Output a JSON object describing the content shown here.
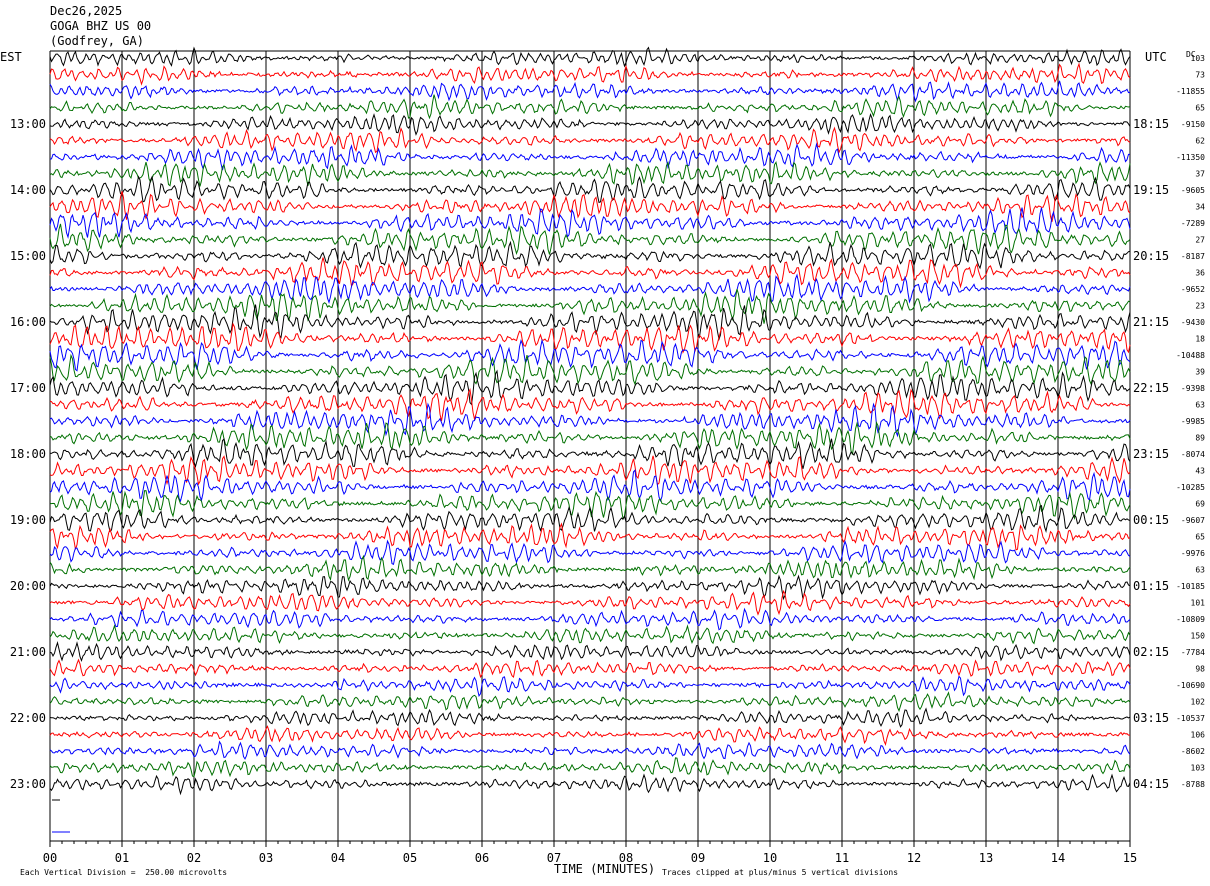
{
  "header": {
    "date": "Dec26,2025",
    "station": "GOGA BHZ US 00",
    "location": "(Godfrey, GA)"
  },
  "labels": {
    "left_zone": "EST",
    "right_zone": "UTC",
    "dc_header": "DC",
    "xlabel": "TIME (MINUTES)",
    "scale_note": "Each Vertical Division =  250.00 microvolts",
    "clip_note": "Traces clipped at plus/minus 5 vertical divisions"
  },
  "chart_data": {
    "type": "line",
    "title": "",
    "xlabel": "TIME (MINUTES)",
    "ylabel": "",
    "xlim": [
      0,
      15
    ],
    "x_ticks": [
      "00",
      "01",
      "02",
      "03",
      "04",
      "05",
      "06",
      "07",
      "08",
      "09",
      "10",
      "11",
      "12",
      "13",
      "14",
      "15"
    ],
    "grid_vertical": true,
    "rows_per_hour": 4,
    "trace_colors": [
      "#000000",
      "#ff0000",
      "#0000ff",
      "#007000"
    ],
    "left_hours": [
      "13:00",
      "14:00",
      "15:00",
      "16:00",
      "17:00",
      "18:00",
      "19:00",
      "20:00",
      "21:00",
      "22:00",
      "23:00"
    ],
    "right_hours": [
      "18:15",
      "19:15",
      "20:15",
      "21:15",
      "22:15",
      "23:15",
      "00:15",
      "01:15",
      "02:15",
      "03:15",
      "04:15"
    ],
    "dc_values": [
      "103",
      "73",
      "-11855",
      "65",
      "-9150",
      "62",
      "-11350",
      "37",
      "-9605",
      "34",
      "-7289",
      "27",
      "-8187",
      "36",
      "-9652",
      "23",
      "-9430",
      "18",
      "-10488",
      "39",
      "-9398",
      "63",
      "-9985",
      "89",
      "-8074",
      "43",
      "-10285",
      "69",
      "-9607",
      "65",
      "-9976",
      "63",
      "-10185",
      "101",
      "-10809",
      "150",
      "-7784",
      "98",
      "-10690",
      "102",
      "-10537",
      "106",
      "-8602",
      "103",
      "-8788"
    ],
    "unit_note": "Each Vertical Division =  250.00 microvolts",
    "clip_note": "Traces clipped at plus/minus 5 vertical divisions"
  },
  "colors": {
    "background": "#ffffff",
    "grid": "#000000"
  }
}
